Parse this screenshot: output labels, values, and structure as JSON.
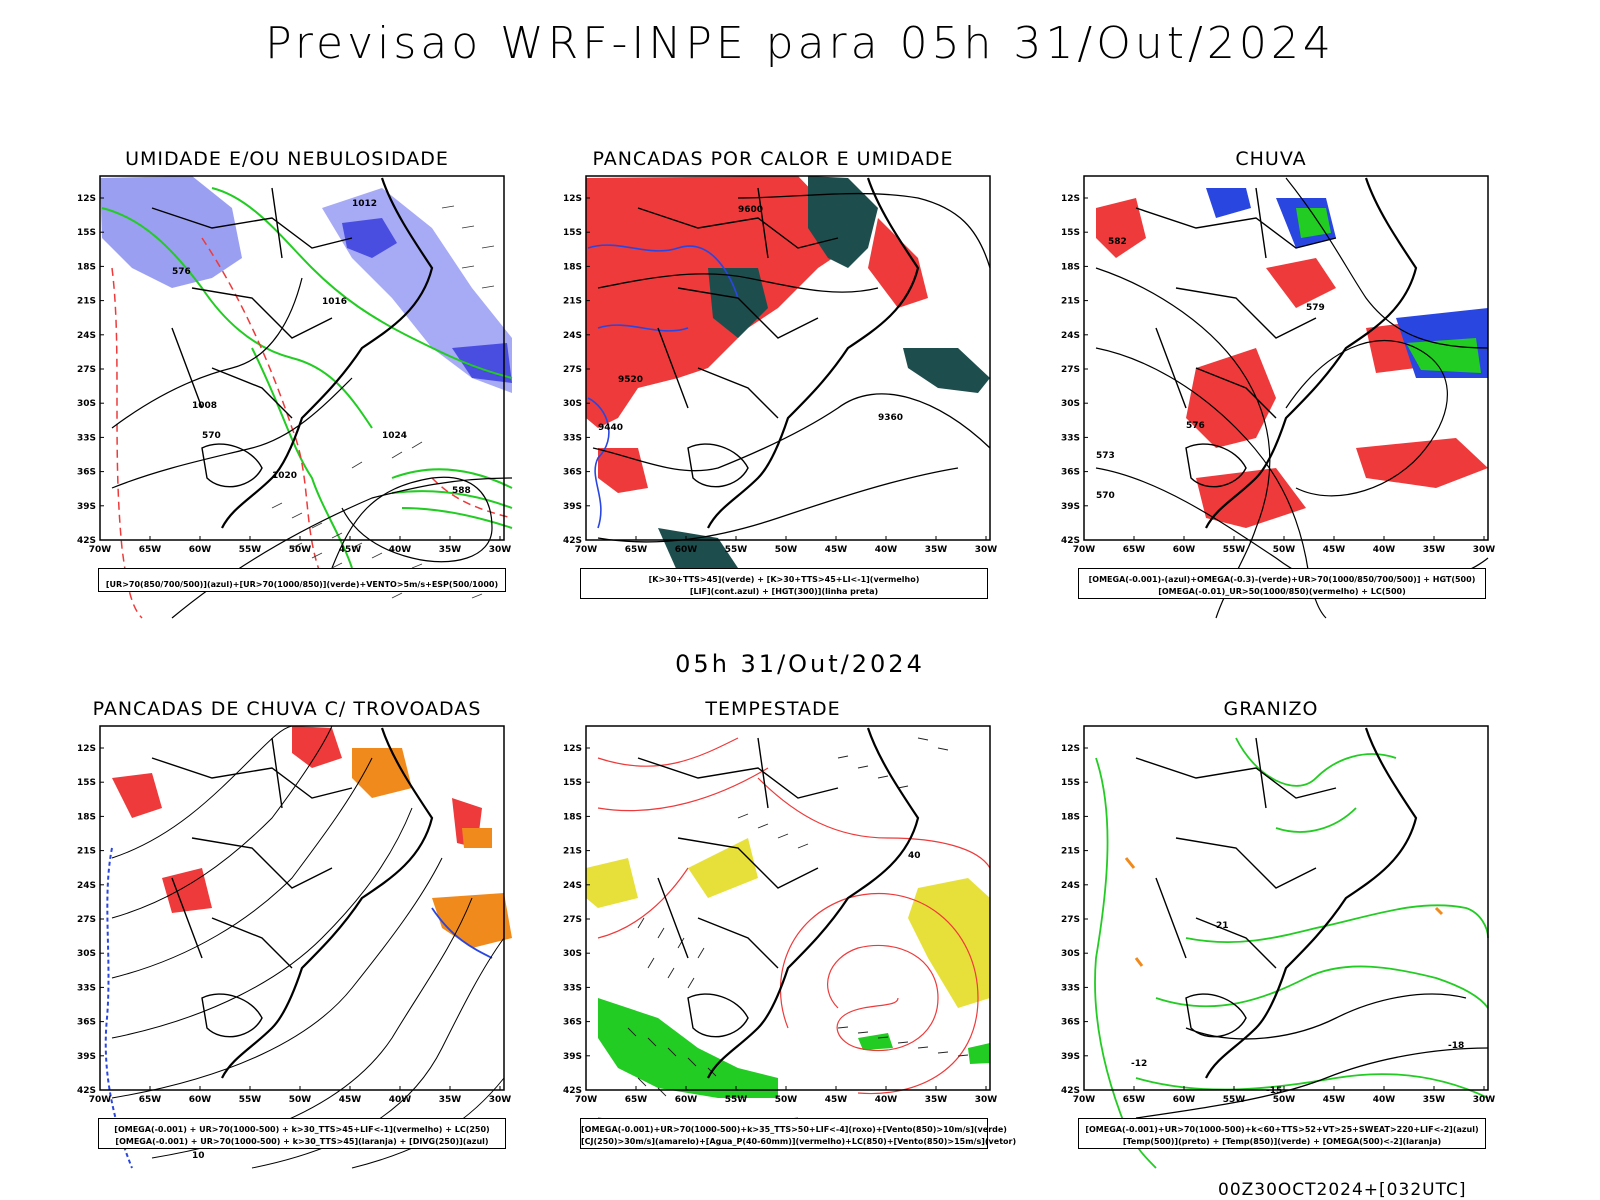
{
  "title": "Previsao WRF-INPE  para 05h 31/Out/2024",
  "subtitle": "05h 31/Out/2024",
  "footer": "00Z30OCT2024+[032UTC]",
  "axes": {
    "lat_labels": [
      "12S",
      "15S",
      "18S",
      "21S",
      "24S",
      "27S",
      "30S",
      "33S",
      "36S",
      "39S",
      "42S"
    ],
    "lon_labels": [
      "70W",
      "65W",
      "60W",
      "55W",
      "50W",
      "45W",
      "40W",
      "35W",
      "30W"
    ]
  },
  "colors": {
    "humidity_blue": "#8a8ef0",
    "green": "#22cc22",
    "red": "#ee3a3a",
    "dark_teal": "#1e4d4d",
    "blue": "#2a46e0",
    "orange": "#f08a1c",
    "yellow": "#e8e03a"
  },
  "panels": [
    {
      "title": "UMIDADE E/OU NEBULOSIDADE",
      "legend": [
        "[UR>70(850/700/500)](azul)+[UR>70(1000/850)](verde)+VENTO>5m/s+ESP(500/1000)"
      ],
      "contour_labels": [
        "1008",
        "1012",
        "1016",
        "1020",
        "1024",
        "570",
        "576",
        "588"
      ]
    },
    {
      "title": "PANCADAS POR CALOR E UMIDADE",
      "legend": [
        "[K>30+TTS>45](verde) + [K>30+TTS>45+LI<-1](vermelho)",
        "[LIF](cont.azul) + [HGT(300)](linha preta)"
      ],
      "contour_labels": [
        "9600",
        "9520",
        "9440",
        "9360"
      ]
    },
    {
      "title": "CHUVA",
      "legend": [
        "[OMEGA(-0.001)-(azul)+OMEGA(-0.3)-(verde)+UR>70(1000/850/700/500)] + HGT(500)",
        "[OMEGA(-0.01)_UR>50(1000/850)(vermelho) + LC(500)"
      ],
      "contour_labels": [
        "582",
        "579",
        "576",
        "573",
        "570"
      ]
    },
    {
      "title": "PANCADAS DE CHUVA C/ TROVOADAS",
      "legend": [
        "[OMEGA(-0.001) + UR>70(1000-500) + k>30_TTS>45+LIF<-1](vermelho) + LC(250)",
        "[OMEGA(-0.001) + UR>70(1000-500) + k>30_TTS>45](laranja) + [DIVG(250)](azul)"
      ],
      "contour_labels": [
        "10"
      ]
    },
    {
      "title": "TEMPESTADE",
      "legend": [
        "[OMEGA(-0.001)+UR>70(1000-500)+k>35_TTS>50+LIF<-4](roxo)+[Vento(850)>10m/s](verde)",
        "[CJ(250)>30m/s](amarelo)+[Agua_P(40-60mm)](vermelho)+LC(850)+[Vento(850)>15m/s](vetor)"
      ],
      "contour_labels": [
        "40"
      ]
    },
    {
      "title": "GRANIZO",
      "legend": [
        "[OMEGA(-0.001)+UR>70(1000-500)+k<60+TTS>52+VT>25+SWEAT>220+LIF<-2](azul)",
        "[Temp(500)](preto) + [Temp(850)](verde) + [OMEGA(500)<-2](laranja)"
      ],
      "contour_labels": [
        "-12",
        "-15",
        "-18",
        "21"
      ]
    }
  ]
}
